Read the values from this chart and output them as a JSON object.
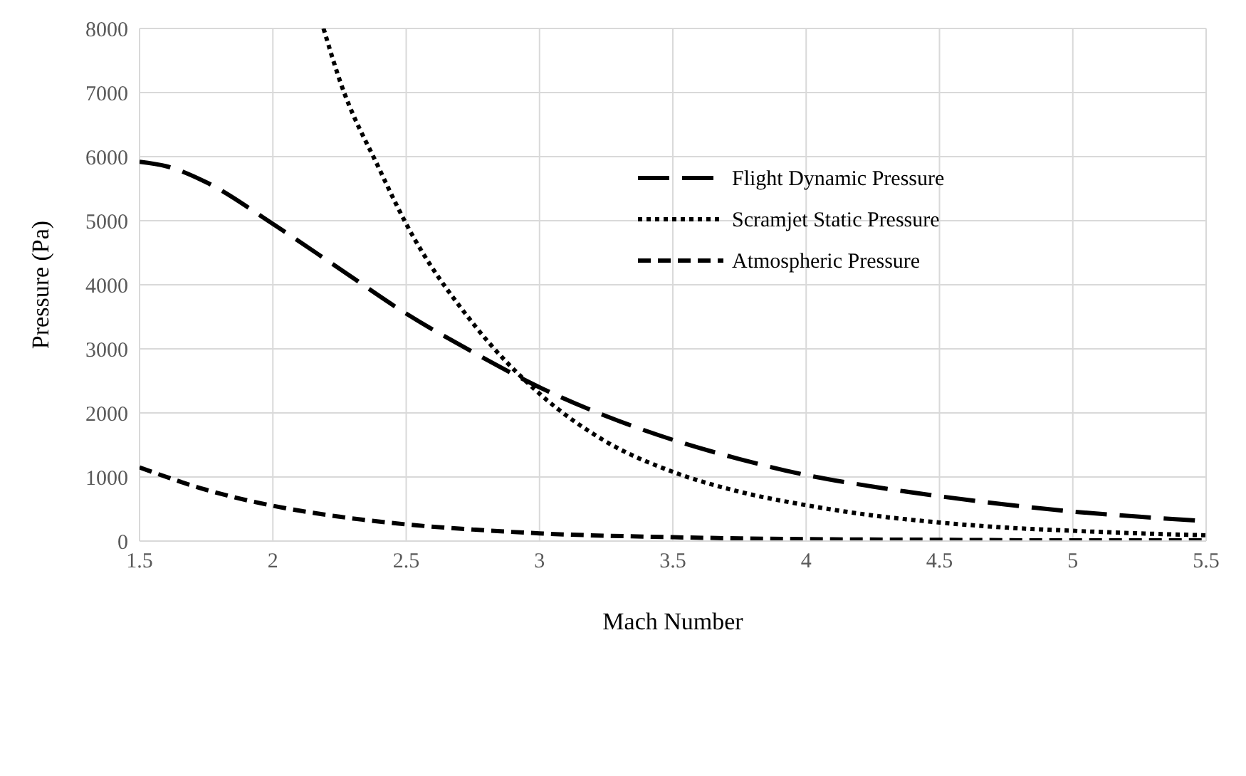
{
  "chart_data": {
    "type": "line",
    "xlabel": "Mach Number",
    "ylabel": "Pressure (Pa)",
    "xlim": [
      1.5,
      5.5
    ],
    "xticks": [
      1.5,
      2,
      2.5,
      3,
      3.5,
      4,
      4.5,
      5,
      5.5
    ],
    "ylim": [
      0,
      8000
    ],
    "yticks": [
      0,
      1000,
      2000,
      3000,
      4000,
      5000,
      6000,
      7000,
      8000
    ],
    "grid": true,
    "legend": "right",
    "marker": "none",
    "series": [
      {
        "name": "Flight Dynamic Pressure",
        "color": "#000000",
        "line_style": "long-dashed",
        "x": [
          1.5,
          1.6,
          1.75,
          2,
          2.25,
          2.5,
          2.75,
          3,
          3.25,
          3.5,
          3.75,
          4,
          4.25,
          4.5,
          4.75,
          5,
          5.25,
          5.5
        ],
        "values": [
          5920,
          5850,
          5600,
          4950,
          4250,
          3550,
          2950,
          2400,
          1950,
          1580,
          1280,
          1030,
          850,
          700,
          570,
          460,
          380,
          310
        ]
      },
      {
        "name": "Scramjet Static Pressure",
        "color": "#000000",
        "line_style": "dotted",
        "x": [
          2.19,
          2.25,
          2.4,
          2.5,
          2.75,
          3,
          3.25,
          3.5,
          3.75,
          4,
          4.25,
          4.5,
          4.75,
          5,
          5.25,
          5.5
        ],
        "values": [
          8000,
          7200,
          5800,
          4950,
          3400,
          2300,
          1550,
          1080,
          770,
          560,
          400,
          290,
          210,
          160,
          120,
          90
        ]
      },
      {
        "name": "Atmospheric Pressure",
        "color": "#000000",
        "line_style": "dashed",
        "x": [
          1.5,
          1.75,
          2,
          2.25,
          2.5,
          2.75,
          3,
          3.5,
          4,
          4.5,
          5,
          5.5
        ],
        "values": [
          1150,
          800,
          550,
          380,
          260,
          180,
          120,
          60,
          30,
          20,
          10,
          10
        ]
      }
    ]
  }
}
